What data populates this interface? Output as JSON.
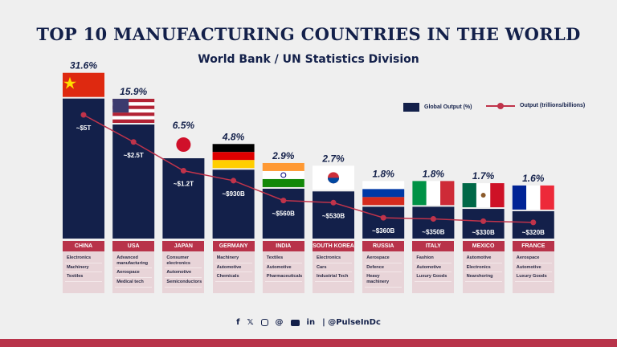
{
  "chart_data": {
    "type": "bar",
    "title": "TOP 10 MANUFACTURING COUNTRIES IN THE WORLD",
    "subtitle": "World Bank / UN Statistics Division",
    "categories": [
      "CHINA",
      "USA",
      "JAPAN",
      "GERMANY",
      "INDIA",
      "SOUTH KOREA",
      "RUSSIA",
      "ITALY",
      "MEXICO",
      "FRANCE"
    ],
    "y_scale": "log",
    "series": [
      {
        "name": "Global Output (%)",
        "type": "bar",
        "values": [
          31.6,
          15.9,
          6.5,
          4.8,
          2.9,
          2.7,
          1.8,
          1.8,
          1.7,
          1.6
        ],
        "labels": [
          "31.6%",
          "15.9%",
          "6.5%",
          "4.8%",
          "2.9%",
          "2.7%",
          "1.8%",
          "1.8%",
          "1.7%",
          "1.6%"
        ]
      },
      {
        "name": "Output (trillions/billions)",
        "type": "line",
        "values_billion_usd": [
          5000,
          2500,
          1200,
          930,
          560,
          530,
          360,
          350,
          330,
          320
        ],
        "labels": [
          "~$5T",
          "~$2.5T",
          "~$1.2T",
          "~$930B",
          "~$560B",
          "~$530B",
          "~$360B",
          "~$350B",
          "~$330B",
          "~$320B"
        ]
      }
    ],
    "industries": [
      [
        "Electronics",
        "Machinery",
        "Textiles"
      ],
      [
        "Advanced manufacturing",
        "Aerospace",
        "Medical tech"
      ],
      [
        "Consumer electronics",
        "Automotive",
        "Semiconductors"
      ],
      [
        "Machinery",
        "Automotive",
        "Chemicals"
      ],
      [
        "Textiles",
        "Automotive",
        "Pharmaceuticals"
      ],
      [
        "Electronics",
        "Cars",
        "Industrial Tech"
      ],
      [
        "Aerospace",
        "Defence",
        "Heavy machinery"
      ],
      [
        "Fashion",
        "Automotive",
        "Luxury Goods"
      ],
      [
        "Automotive",
        "Electronics",
        "Nearshoring"
      ],
      [
        "Aerospace",
        "Automotive",
        "Luxury Goods"
      ]
    ],
    "flags": [
      "china",
      "usa",
      "japan",
      "germany",
      "india",
      "south-korea",
      "russia",
      "italy",
      "mexico",
      "france"
    ],
    "legend_placement": "top-right",
    "colors": {
      "bar": "#13204a",
      "line": "#c0334a",
      "header": "#b8334a",
      "box": "#e8d4d8"
    }
  },
  "footer": {
    "icons": [
      "facebook-icon",
      "x-icon",
      "instagram-icon",
      "threads-icon",
      "youtube-icon",
      "linkedin-icon"
    ],
    "handle": "| @PulseInDc"
  }
}
